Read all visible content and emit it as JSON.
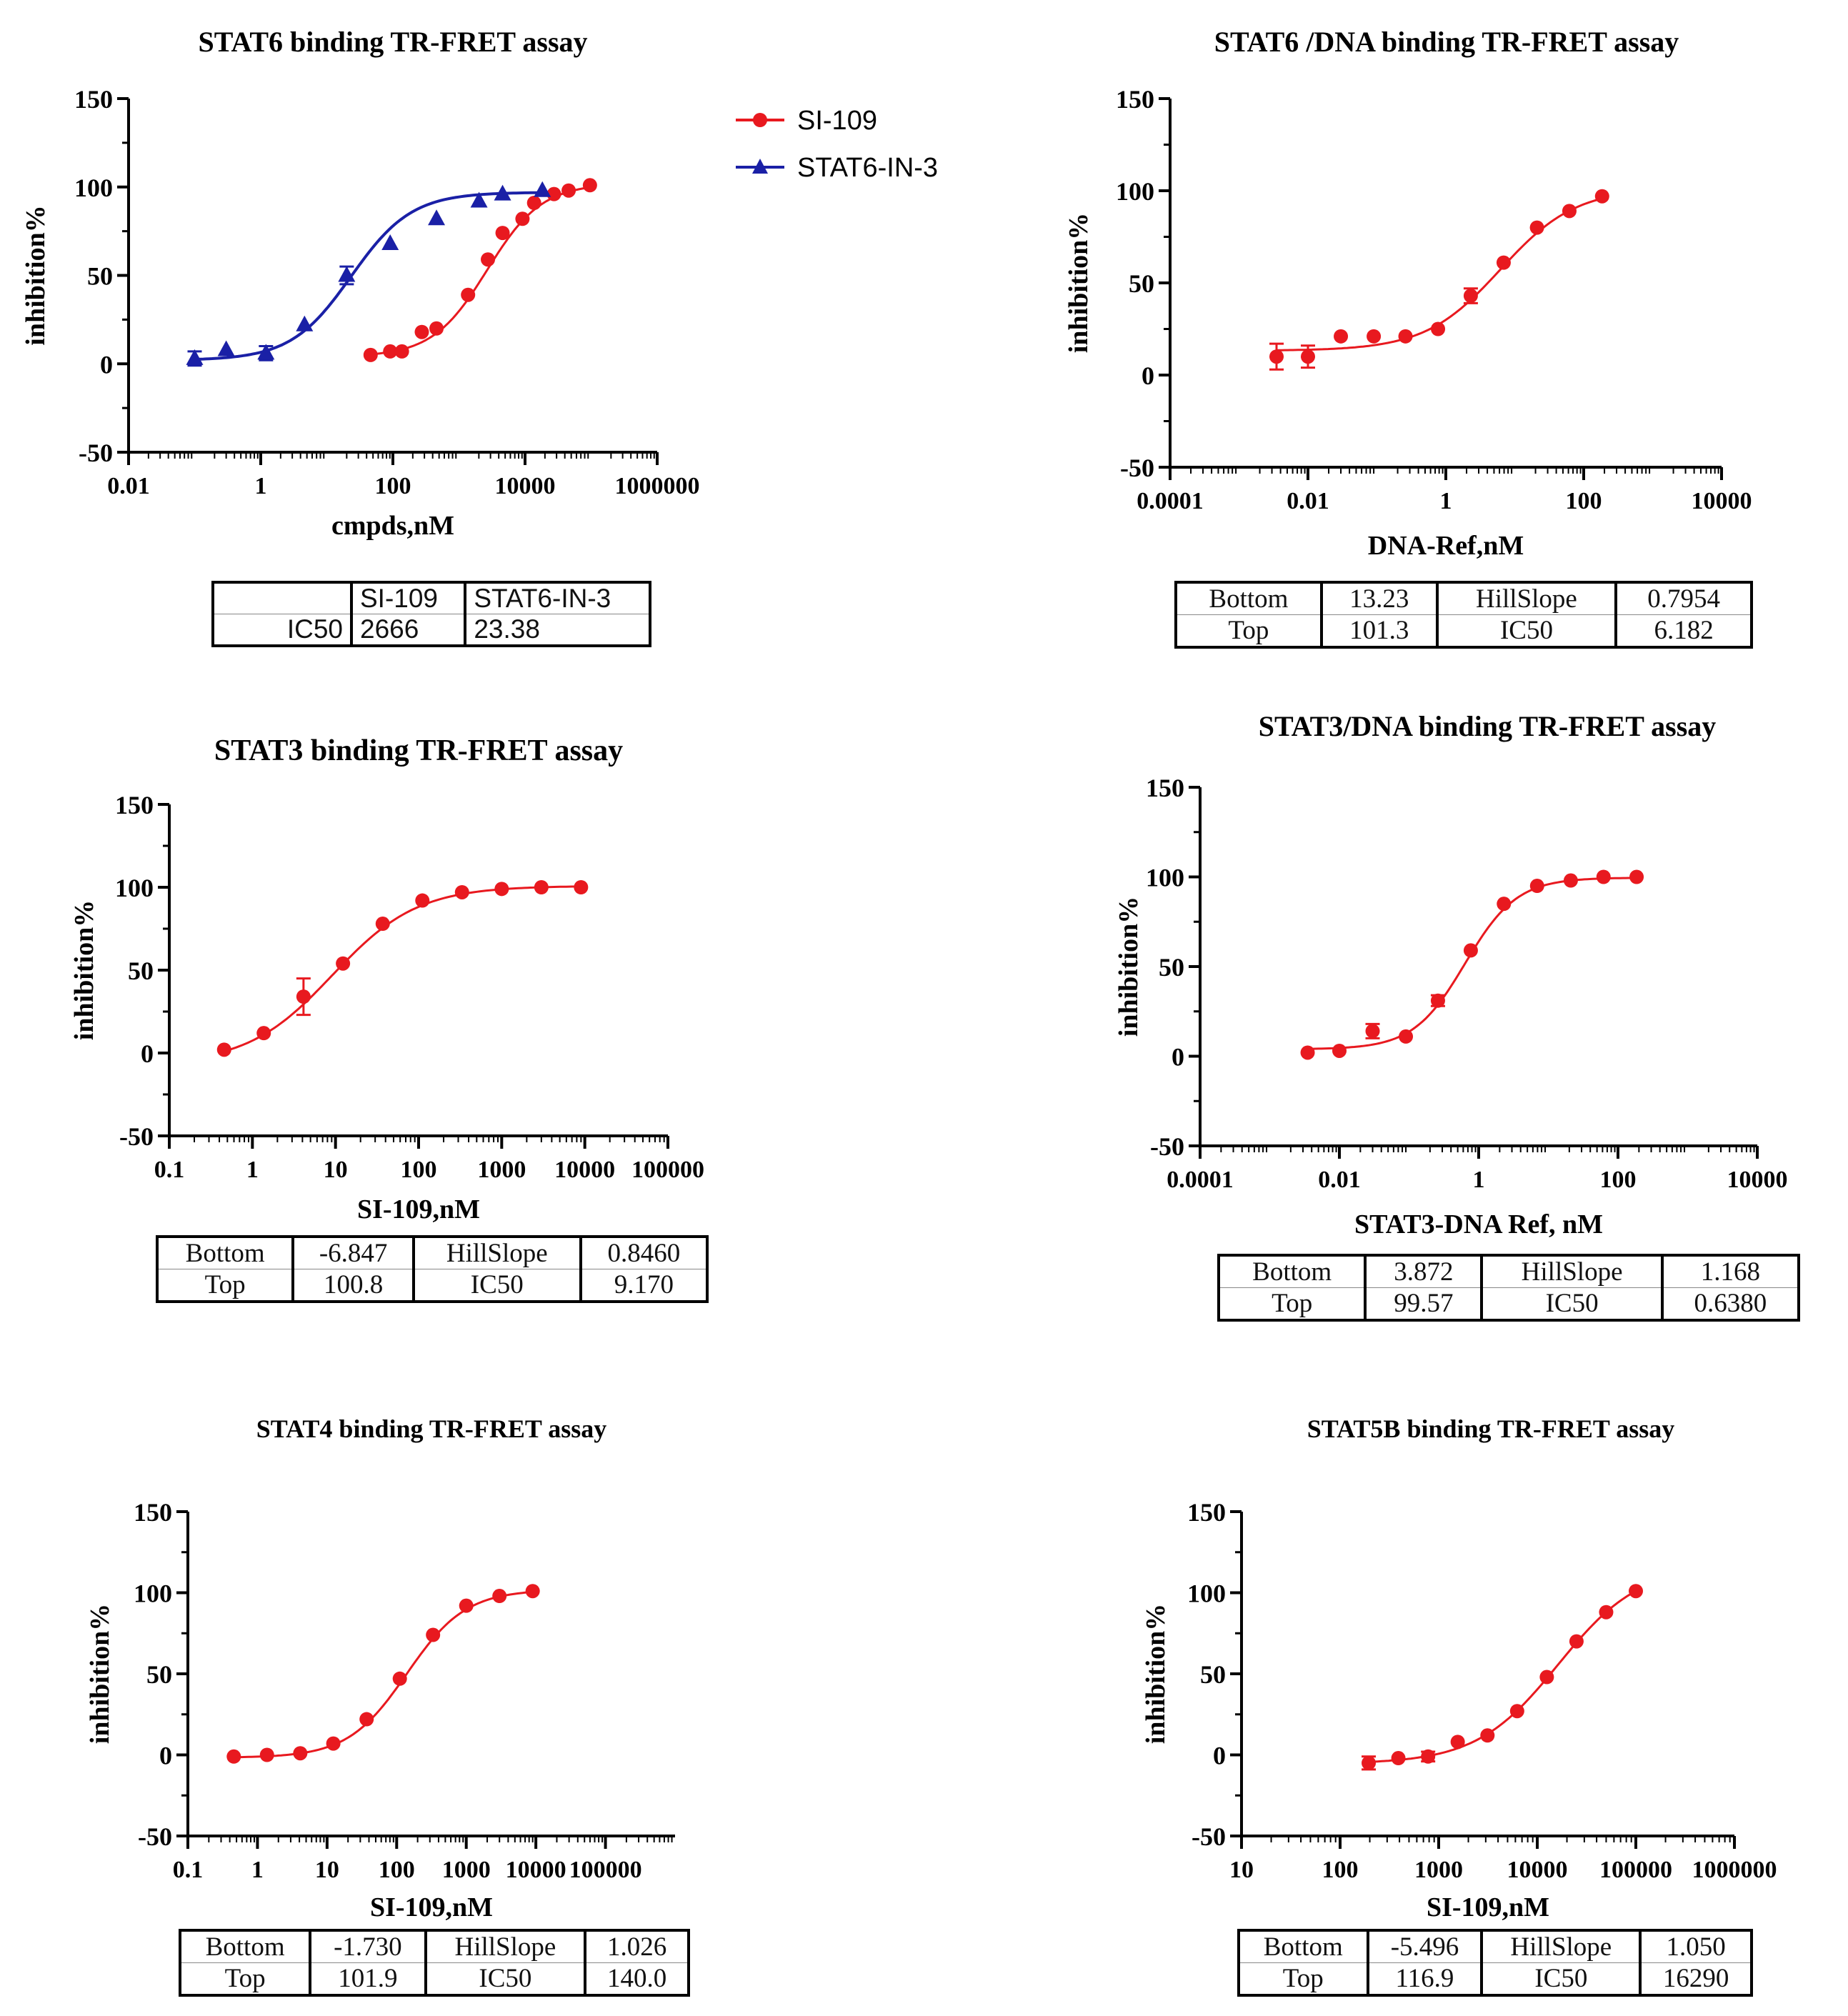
{
  "colors": {
    "red": "#e8191f",
    "blue": "#1a20a6",
    "axis": "#000000"
  },
  "chart_data": [
    {
      "id": "stat6",
      "type": "scatter",
      "title": "STAT6 binding TR-FRET assay",
      "xlabel": "cmpds,nM",
      "ylabel": "inhibition%",
      "x_scale": "log",
      "xlim": [
        0.01,
        1000000
      ],
      "ylim": [
        -50,
        150
      ],
      "x_ticks": [
        0.01,
        1,
        100,
        10000,
        1000000
      ],
      "x_tick_labels": [
        "0.01",
        "1",
        "100",
        "10000",
        "1000000"
      ],
      "y_ticks": [
        -50,
        0,
        50,
        100,
        150
      ],
      "y_tick_labels": [
        "-50",
        "0",
        "50",
        "100",
        "150"
      ],
      "legend": "right",
      "series": [
        {
          "name": "SI-109",
          "marker": "circle",
          "color": "#e8191f",
          "x": [
            46,
            91,
            137,
            274,
            457,
            1372,
            2743,
            4572,
            9144,
            13716,
            27432,
            45720,
            96000
          ],
          "y": [
            5,
            7,
            7,
            18,
            20,
            39,
            59,
            74,
            82,
            91,
            96,
            98,
            101
          ],
          "fit": {
            "bottom": 4,
            "top": 102,
            "ic50": 2666,
            "hill": 1.05
          }
        },
        {
          "name": "STAT6-IN-3",
          "marker": "triangle",
          "color": "#1a20a6",
          "x": [
            0.1,
            0.3,
            1.2,
            4.6,
            20,
            91,
            457,
            2012,
            4572,
            18288
          ],
          "y": [
            3,
            8,
            6,
            22,
            50,
            68,
            82,
            92,
            96,
            98
          ],
          "err": [
            4,
            0,
            4,
            0,
            5,
            0,
            0,
            0,
            0,
            0
          ],
          "fit": {
            "bottom": 2,
            "top": 97,
            "ic50": 23.38,
            "hill": 0.95
          }
        }
      ],
      "params_table": {
        "headers": [
          "",
          "SI-109",
          "STAT6-IN-3"
        ],
        "rows": [
          [
            "IC50",
            "2666",
            "23.38"
          ]
        ]
      }
    },
    {
      "id": "stat6-dna",
      "type": "scatter",
      "title": "STAT6 /DNA binding TR-FRET assay",
      "xlabel": "DNA-Ref,nM",
      "ylabel": "inhibition%",
      "x_scale": "log",
      "xlim": [
        0.0001,
        10000
      ],
      "ylim": [
        -50,
        150
      ],
      "x_ticks": [
        0.0001,
        0.01,
        1,
        100,
        10000
      ],
      "x_tick_labels": [
        "0.0001",
        "0.01",
        "1",
        "100",
        "10000"
      ],
      "y_ticks": [
        -50,
        0,
        50,
        100,
        150
      ],
      "y_tick_labels": [
        "-50",
        "0",
        "50",
        "100",
        "150"
      ],
      "series": [
        {
          "name": "",
          "marker": "circle",
          "color": "#e8191f",
          "x": [
            0.0035,
            0.01,
            0.03,
            0.09,
            0.26,
            0.77,
            2.3,
            6.9,
            21,
            62,
            185
          ],
          "y": [
            10,
            10,
            21,
            21,
            21,
            25,
            43,
            61,
            80,
            89,
            97
          ],
          "err": [
            7,
            6,
            0,
            0,
            0,
            0,
            4,
            0,
            0,
            0,
            0
          ],
          "fit": {
            "bottom": 13.23,
            "top": 101.3,
            "ic50": 6.182,
            "hill": 0.7954
          }
        }
      ],
      "params_table": {
        "rows": [
          [
            "Bottom",
            "13.23",
            "HillSlope",
            "0.7954"
          ],
          [
            "Top",
            "101.3",
            "IC50",
            "6.182"
          ]
        ]
      }
    },
    {
      "id": "stat3",
      "type": "scatter",
      "title": "STAT3 binding TR-FRET assay",
      "xlabel": "SI-109,nM",
      "ylabel": "inhibition%",
      "x_scale": "log",
      "xlim": [
        0.1,
        100000
      ],
      "ylim": [
        -50,
        150
      ],
      "x_ticks": [
        0.1,
        1,
        10,
        100,
        1000,
        10000,
        100000
      ],
      "x_tick_labels": [
        "0.1",
        "1",
        "10",
        "100",
        "1000",
        "10000",
        "100000"
      ],
      "y_ticks": [
        -50,
        0,
        50,
        100,
        150
      ],
      "y_tick_labels": [
        "-50",
        "0",
        "50",
        "100",
        "150"
      ],
      "series": [
        {
          "name": "",
          "marker": "circle",
          "color": "#e8191f",
          "x": [
            0.457,
            1.37,
            4.12,
            12.3,
            37,
            111,
            333,
            1000,
            3000,
            9000
          ],
          "y": [
            2,
            12,
            34,
            54,
            78,
            92,
            97,
            99,
            100,
            100
          ],
          "err": [
            0,
            0,
            11,
            0,
            0,
            0,
            0,
            0,
            0,
            0
          ],
          "fit": {
            "bottom": -6.847,
            "top": 100.8,
            "ic50": 9.17,
            "hill": 0.846
          }
        }
      ],
      "params_table": {
        "rows": [
          [
            "Bottom",
            "-6.847",
            "HillSlope",
            "0.8460"
          ],
          [
            "Top",
            "100.8",
            "IC50",
            "9.170"
          ]
        ]
      }
    },
    {
      "id": "stat3-dna",
      "type": "scatter",
      "title": "STAT3/DNA binding TR-FRET assay",
      "xlabel": "STAT3-DNA Ref, nM",
      "ylabel": "inhibition%",
      "x_scale": "log",
      "xlim": [
        0.0001,
        10000
      ],
      "ylim": [
        -50,
        150
      ],
      "x_ticks": [
        0.0001,
        0.01,
        1,
        100,
        10000
      ],
      "x_tick_labels": [
        "0.0001",
        "0.01",
        "1",
        "100",
        "10000"
      ],
      "y_ticks": [
        -50,
        0,
        50,
        100,
        150
      ],
      "y_tick_labels": [
        "-50",
        "0",
        "50",
        "100",
        "150"
      ],
      "series": [
        {
          "name": "",
          "marker": "circle",
          "color": "#e8191f",
          "x": [
            0.0035,
            0.01,
            0.03,
            0.09,
            0.26,
            0.77,
            2.3,
            6.9,
            21,
            62,
            185
          ],
          "y": [
            2,
            3,
            14,
            11,
            31,
            59,
            85,
            95,
            98,
            100,
            100
          ],
          "err": [
            0,
            0,
            4,
            0,
            3,
            0,
            0,
            0,
            0,
            0,
            0
          ],
          "fit": {
            "bottom": 3.872,
            "top": 99.57,
            "ic50": 0.638,
            "hill": 1.168
          }
        }
      ],
      "params_table": {
        "rows": [
          [
            "Bottom",
            "3.872",
            "HillSlope",
            "1.168"
          ],
          [
            "Top",
            "99.57",
            "IC50",
            "0.6380"
          ]
        ]
      }
    },
    {
      "id": "stat4",
      "type": "scatter",
      "title": "STAT4 binding TR-FRET assay",
      "xlabel": "SI-109,nM",
      "ylabel": "inhibition%",
      "x_scale": "log",
      "xlim": [
        0.1,
        1000000
      ],
      "ylim": [
        -50,
        150
      ],
      "x_ticks": [
        0.1,
        1,
        10,
        100,
        1000,
        10000,
        100000
      ],
      "x_tick_labels": [
        "0.1",
        "1",
        "10",
        "100",
        "1000",
        "10000",
        "100000"
      ],
      "y_ticks": [
        -50,
        0,
        50,
        100,
        150
      ],
      "y_tick_labels": [
        "-50",
        "0",
        "50",
        "100",
        "150"
      ],
      "series": [
        {
          "name": "",
          "marker": "circle",
          "color": "#e8191f",
          "x": [
            0.457,
            1.37,
            4.12,
            12.3,
            37,
            111,
            333,
            1000,
            3000,
            9000
          ],
          "y": [
            -1,
            0,
            1,
            7,
            22,
            47,
            74,
            92,
            98,
            101
          ],
          "fit": {
            "bottom": -1.73,
            "top": 101.9,
            "ic50": 140,
            "hill": 1.026
          }
        }
      ],
      "params_table": {
        "rows": [
          [
            "Bottom",
            "-1.730",
            "HillSlope",
            "1.026"
          ],
          [
            "Top",
            "101.9",
            "IC50",
            "140.0"
          ]
        ]
      }
    },
    {
      "id": "stat5b",
      "type": "scatter",
      "title": "STAT5B binding TR-FRET assay",
      "xlabel": "SI-109,nM",
      "ylabel": "inhibition%",
      "x_scale": "log",
      "xlim": [
        10,
        1000000
      ],
      "ylim": [
        -50,
        150
      ],
      "x_ticks": [
        10,
        100,
        1000,
        10000,
        100000,
        1000000
      ],
      "x_tick_labels": [
        "10",
        "100",
        "1000",
        "10000",
        "100000",
        "1000000"
      ],
      "y_ticks": [
        -50,
        0,
        50,
        100,
        150
      ],
      "y_tick_labels": [
        "-50",
        "0",
        "50",
        "100",
        "150"
      ],
      "series": [
        {
          "name": "",
          "marker": "circle",
          "color": "#e8191f",
          "x": [
            195,
            390,
            781,
            1560,
            3125,
            6250,
            12500,
            25000,
            50000,
            100000
          ],
          "y": [
            -5,
            -2,
            -1,
            8,
            12,
            27,
            48,
            70,
            88,
            101
          ],
          "err": [
            4,
            0,
            3,
            0,
            0,
            0,
            0,
            0,
            0,
            0
          ],
          "fit": {
            "bottom": -5.496,
            "top": 116.9,
            "ic50": 16290,
            "hill": 1.05
          }
        }
      ],
      "params_table": {
        "rows": [
          [
            "Bottom",
            "-5.496",
            "HillSlope",
            "1.050"
          ],
          [
            "Top",
            "116.9",
            "IC50",
            "16290"
          ]
        ]
      }
    }
  ]
}
